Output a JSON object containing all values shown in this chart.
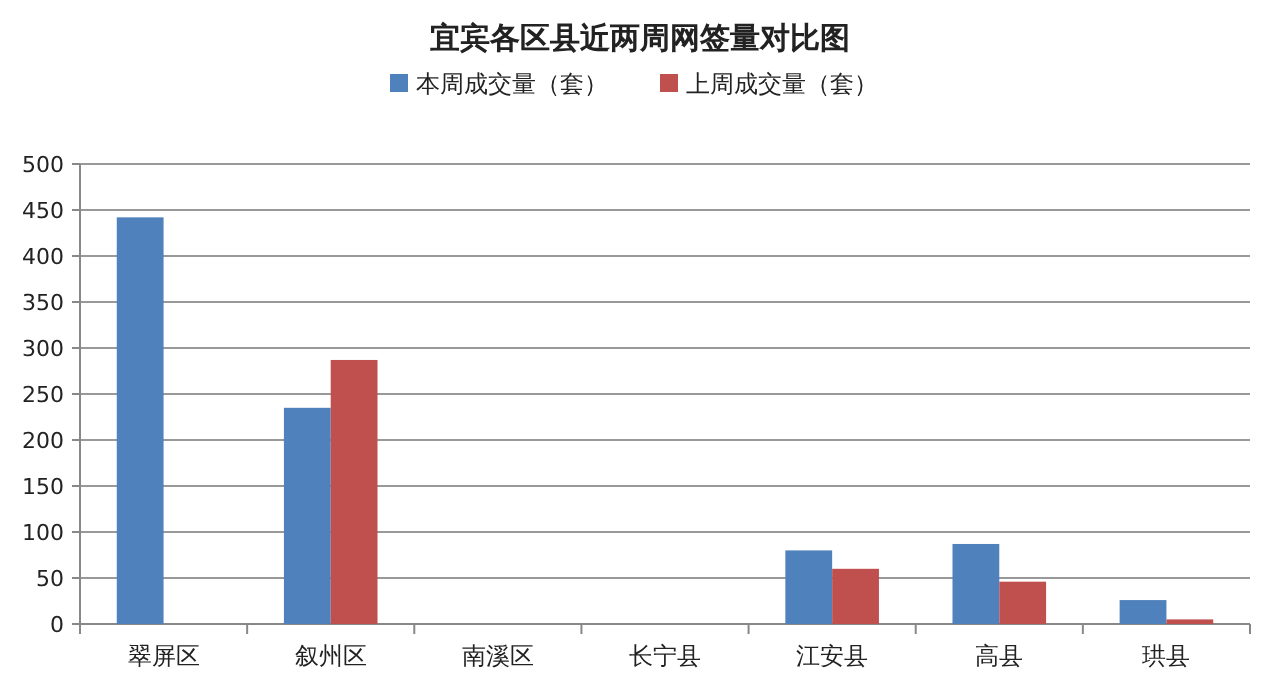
{
  "chart_data": {
    "type": "bar",
    "title": "宜宾各区县近两周网签量对比图",
    "categories": [
      "翠屏区",
      "叙州区",
      "南溪区",
      "长宁县",
      "江安县",
      "高县",
      "珙县"
    ],
    "series": [
      {
        "name": "本周成交量（套）",
        "color": "#4f81bd",
        "values": [
          442,
          235,
          0,
          0,
          80,
          87,
          26
        ]
      },
      {
        "name": "上周成交量（套）",
        "color": "#c0504d",
        "values": [
          0,
          287,
          0,
          0,
          60,
          46,
          5
        ]
      }
    ],
    "ylim": [
      0,
      500
    ],
    "yticks": [
      0,
      50,
      100,
      150,
      200,
      250,
      300,
      350,
      400,
      450,
      500
    ],
    "grid": "y",
    "legend": "top"
  }
}
